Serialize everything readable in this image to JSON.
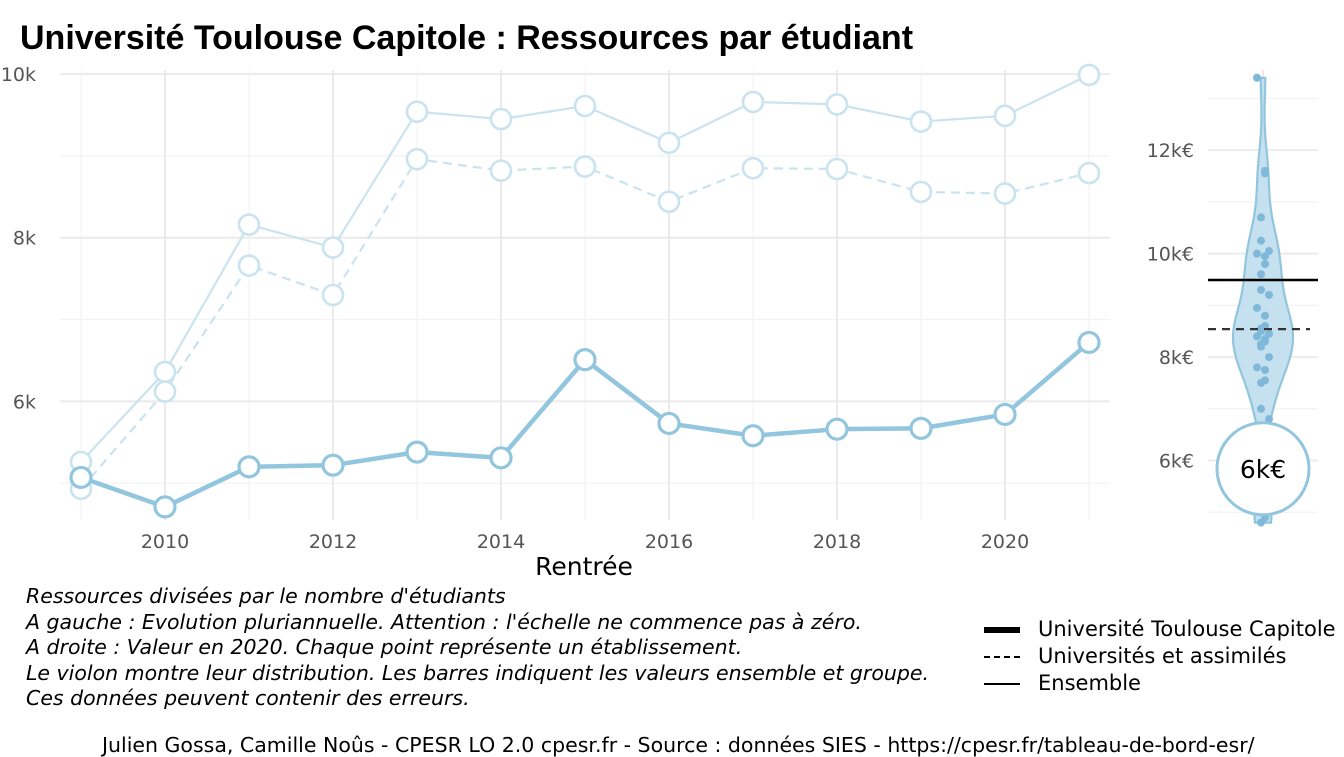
{
  "title": "Université Toulouse Capitole  :  Ressources par étudiant",
  "chart_data": [
    {
      "type": "line",
      "xlabel": "Rentrée",
      "ylabel": "",
      "xlim": [
        2008.75,
        2021.25
      ],
      "ylim": [
        4550,
        10050
      ],
      "x_ticks": [
        2010,
        2012,
        2014,
        2016,
        2018,
        2020
      ],
      "x_tick_labels": [
        "2010",
        "2012",
        "2014",
        "2016",
        "2018",
        "2020"
      ],
      "y_ticks": [
        6000,
        8000,
        10000
      ],
      "y_tick_labels": [
        "6k",
        "8k",
        "10k"
      ],
      "x": [
        2009,
        2010,
        2011,
        2012,
        2013,
        2014,
        2015,
        2016,
        2017,
        2018,
        2019,
        2020,
        2021
      ],
      "series": [
        {
          "name": "Ensemble",
          "style": "solid-light",
          "color": "#c9e3ef",
          "values": [
            5260,
            6360,
            8160,
            7880,
            9540,
            9450,
            9610,
            9160,
            9660,
            9630,
            9420,
            9490,
            9990
          ]
        },
        {
          "name": "Universités et assimilés",
          "style": "dashed-light",
          "color": "#c9e3ef",
          "values": [
            4930,
            6120,
            7660,
            7300,
            8960,
            8820,
            8870,
            8440,
            8850,
            8840,
            8560,
            8540,
            8790
          ]
        },
        {
          "name": "Université Toulouse Capitole",
          "style": "thick",
          "color": "#92c5de",
          "values": [
            5070,
            4710,
            5200,
            5220,
            5380,
            5310,
            6510,
            5730,
            5580,
            5660,
            5670,
            5840,
            6720
          ]
        }
      ],
      "grid": true
    },
    {
      "type": "violin",
      "xlabel": "",
      "ylabel": "",
      "ylim": [
        4850,
        13550
      ],
      "y_ticks": [
        6000,
        8000,
        10000,
        12000
      ],
      "y_tick_labels": [
        "6k€",
        "8k€",
        "10k€",
        "12k€"
      ],
      "points": [
        13400,
        11600,
        11550,
        10700,
        10250,
        10050,
        10000,
        9950,
        9800,
        9600,
        9300,
        9200,
        8950,
        8800,
        8600,
        8550,
        8500,
        8450,
        8400,
        8350,
        8300,
        8250,
        8200,
        8000,
        7800,
        7750,
        7550,
        7500,
        7000,
        6800,
        5300,
        5000,
        4900,
        4800
      ],
      "hline_ensemble": 9490,
      "hline_group": 8540,
      "highlight_value": 5840,
      "highlight_label": "6k€",
      "fill": "#c5e0ee",
      "outline": "#92c5de",
      "point_color": "#7fb8d8",
      "grid": true
    }
  ],
  "notes": [
    "Ressources divisées par le nombre d'étudiants",
    "A gauche : Evolution pluriannuelle. Attention : l'échelle ne commence pas à zéro.",
    "A droite : Valeur en 2020. Chaque point représente un établissement.",
    "Le violon montre leur distribution. Les barres indiquent les valeurs ensemble et groupe.",
    "Ces données peuvent contenir des erreurs."
  ],
  "legend": [
    {
      "label": "Université Toulouse Capitole",
      "style": "thick"
    },
    {
      "label": "Universités et assimilés",
      "style": "dashed"
    },
    {
      "label": "Ensemble",
      "style": "thin"
    }
  ],
  "caption": "Julien Gossa, Camille Noûs - CPESR LO 2.0 cpesr.fr - Source : données SIES - https://cpesr.fr/tableau-de-bord-esr/"
}
